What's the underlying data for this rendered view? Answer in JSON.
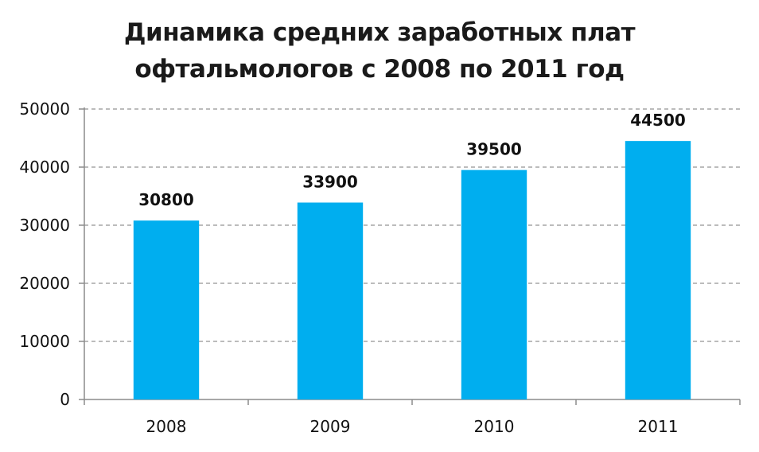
{
  "colors": {
    "bar": "#00AEEF",
    "grid": "#7a7a7a",
    "axis": "#8c8c8c",
    "text": "#111111"
  },
  "chart_data": {
    "type": "bar",
    "title_lines": [
      "Динамика средних заработных плат",
      "офтальмологов с 2008 по 2011 год"
    ],
    "categories": [
      "2008",
      "2009",
      "2010",
      "2011"
    ],
    "values": [
      30800,
      33900,
      39500,
      44500
    ],
    "data_labels": [
      "30800",
      "33900",
      "39500",
      "44500"
    ],
    "y_ticks": [
      0,
      10000,
      20000,
      30000,
      40000,
      50000
    ],
    "ylim": [
      0,
      50000
    ],
    "grid": true,
    "legend": "none"
  }
}
